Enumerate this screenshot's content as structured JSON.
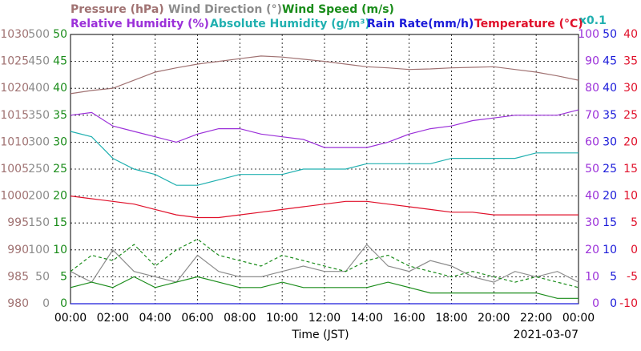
{
  "chart_data": {
    "type": "line",
    "x_label": "Time (JST)",
    "date": "2021-03-07",
    "scale_note": "x0.1",
    "grid": true,
    "xlim": [
      0,
      24
    ],
    "xticks": [
      {
        "value": 0,
        "label": "00:00"
      },
      {
        "value": 2,
        "label": "02:00"
      },
      {
        "value": 4,
        "label": "04:00"
      },
      {
        "value": 6,
        "label": "06:00"
      },
      {
        "value": 8,
        "label": "08:00"
      },
      {
        "value": 10,
        "label": "10:00"
      },
      {
        "value": 12,
        "label": "12:00"
      },
      {
        "value": 14,
        "label": "14:00"
      },
      {
        "value": 16,
        "label": "16:00"
      },
      {
        "value": 18,
        "label": "18:00"
      },
      {
        "value": 20,
        "label": "20:00"
      },
      {
        "value": 22,
        "label": "22:00"
      },
      {
        "value": 24,
        "label": "00:00"
      }
    ],
    "x": [
      0,
      1,
      2,
      3,
      4,
      5,
      6,
      7,
      8,
      9,
      10,
      11,
      12,
      13,
      14,
      15,
      16,
      17,
      18,
      19,
      20,
      21,
      22,
      23,
      24
    ],
    "axes": [
      {
        "side": "left",
        "color": "#a07272",
        "lim": [
          980,
          1030
        ],
        "ticks": [
          980,
          985,
          990,
          995,
          1000,
          1005,
          1010,
          1015,
          1020,
          1025,
          1030
        ]
      },
      {
        "side": "left",
        "color": "#8c8c8c",
        "lim": [
          0,
          500
        ],
        "ticks": [
          0,
          50,
          100,
          150,
          200,
          250,
          300,
          350,
          400,
          450,
          500
        ]
      },
      {
        "side": "left",
        "color": "#1a8c1a",
        "lim": [
          0,
          50
        ],
        "ticks": [
          0,
          5,
          10,
          15,
          20,
          25,
          30,
          35,
          40,
          45,
          50
        ]
      },
      {
        "side": "right",
        "color": "#9b30d9",
        "lim": [
          0,
          100
        ],
        "ticks": [
          0,
          10,
          20,
          30,
          40,
          50,
          60,
          70,
          80,
          90,
          100
        ]
      },
      {
        "side": "right",
        "color": "#1a1ad9",
        "lim": [
          0,
          50
        ],
        "ticks": [
          0,
          5,
          10,
          15,
          20,
          25,
          30,
          35,
          40,
          45,
          50
        ]
      },
      {
        "side": "right",
        "color": "#e0102a",
        "lim": [
          -10,
          40
        ],
        "ticks": [
          -10,
          -5,
          0,
          5,
          10,
          15,
          20,
          25,
          30,
          35,
          40
        ]
      }
    ],
    "series": [
      {
        "name": "Pressure (hPa)",
        "color": "#a07272",
        "axis": 0,
        "values": [
          1019,
          1019.6,
          1020,
          1021.5,
          1023,
          1023.8,
          1024.5,
          1025,
          1025.5,
          1026,
          1025.8,
          1025.4,
          1025,
          1024.5,
          1024,
          1023.8,
          1023.5,
          1023.6,
          1023.8,
          1023.9,
          1024,
          1023.5,
          1023,
          1022.3,
          1021.5
        ]
      },
      {
        "name": "Wind Direction (°)",
        "color": "#8c8c8c",
        "axis": 1,
        "values": [
          60,
          40,
          100,
          60,
          50,
          40,
          90,
          60,
          50,
          50,
          60,
          70,
          60,
          60,
          110,
          70,
          60,
          80,
          70,
          50,
          40,
          60,
          50,
          60,
          40
        ]
      },
      {
        "name": "Wind Speed (m/s)",
        "color": "#1a8c1a",
        "axis": 2,
        "values": [
          3,
          4,
          3,
          5,
          3,
          4,
          5,
          4,
          3,
          3,
          4,
          3,
          3,
          3,
          3,
          4,
          3,
          2,
          2,
          2,
          2,
          2,
          2,
          1,
          1
        ]
      },
      {
        "color": "#1a8c1a",
        "axis": 2,
        "dashed": true,
        "values": [
          6,
          9,
          8,
          11,
          7,
          10,
          12,
          9,
          8,
          7,
          9,
          8,
          7,
          6,
          8,
          9,
          7,
          6,
          5,
          6,
          5,
          4,
          5,
          4,
          3
        ]
      },
      {
        "name": "Relative Humidity (%)",
        "color": "#9b30d9",
        "axis": 3,
        "values": [
          70,
          71,
          66,
          64,
          62,
          60,
          63,
          65,
          65,
          63,
          62,
          61,
          58,
          58,
          58,
          60,
          63,
          65,
          66,
          68,
          69,
          70,
          70,
          70,
          72
        ]
      },
      {
        "name": "Absolute Humidity (g/m³)",
        "color": "#20b0b0",
        "axis": 4,
        "values": [
          32,
          31,
          27,
          25,
          24,
          22,
          22,
          23,
          24,
          24,
          24,
          25,
          25,
          25,
          26,
          26,
          26,
          26,
          27,
          27,
          27,
          27,
          28,
          28,
          28
        ]
      },
      {
        "name": "Rain Rate(mm/h)",
        "color": "#1a1ad9",
        "axis": 4,
        "values": [
          0,
          0,
          0,
          0,
          0,
          0,
          0,
          0,
          0,
          0,
          0,
          0,
          0,
          0,
          0,
          0,
          0,
          0,
          0,
          0,
          0,
          0,
          0,
          0,
          0
        ]
      },
      {
        "name": "Temperature (°C)",
        "color": "#e0102a",
        "axis": 5,
        "values": [
          10,
          9.5,
          9,
          8.5,
          7.5,
          6.5,
          6,
          6,
          6.5,
          7,
          7.5,
          8,
          8.5,
          9,
          9,
          8.5,
          8,
          7.5,
          7,
          7,
          6.5,
          6.5,
          6.5,
          6.5,
          6.5
        ]
      }
    ]
  }
}
